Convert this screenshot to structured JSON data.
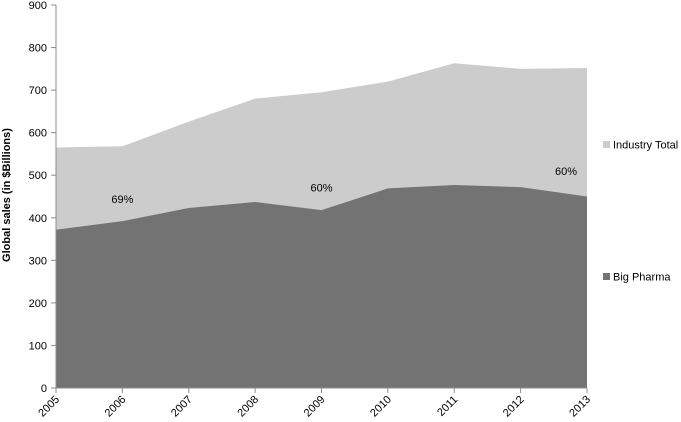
{
  "chart_data": {
    "type": "area",
    "title": "",
    "xlabel": "",
    "ylabel": "Global sales (in $Billions)",
    "x": [
      "2005",
      "2006",
      "2007",
      "2008",
      "2009",
      "2010",
      "2011",
      "2012",
      "2013"
    ],
    "ylim": [
      0,
      900
    ],
    "yticks": [
      0,
      100,
      200,
      300,
      400,
      500,
      600,
      700,
      800,
      900
    ],
    "stacked": false,
    "grid": false,
    "legend_position": "right",
    "series": [
      {
        "name": "Industry Total",
        "color": "#cccccc",
        "values": [
          565,
          568,
          626,
          680,
          695,
          720,
          763,
          750,
          752
        ]
      },
      {
        "name": "Big Pharma",
        "color": "#737373",
        "values": [
          372,
          392,
          423,
          437,
          418,
          469,
          477,
          472,
          450
        ]
      }
    ],
    "annotations": [
      {
        "text": "69%",
        "x": "2006",
        "y": 435
      },
      {
        "text": "60%",
        "x": "2009",
        "y": 462
      },
      {
        "text": "60%",
        "x": "2013",
        "y": 500
      }
    ]
  }
}
